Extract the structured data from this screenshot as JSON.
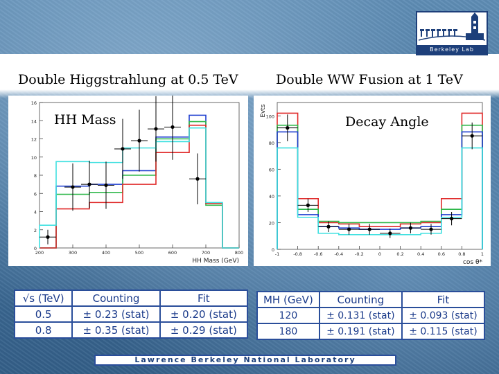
{
  "headings": {
    "left": "Double Higgstrahlung at 0.5 TeV",
    "right": "Double WW Fusion at 1 TeV"
  },
  "logo": {
    "text": "Berkeley Lab"
  },
  "footer": {
    "text": "Lawrence Berkeley National Laboratory"
  },
  "colors": {
    "blue": "#1f3fd0",
    "green": "#2fb84a",
    "red": "#e02a2a",
    "cyan": "#3fe0e0",
    "data": "#000000"
  },
  "chart_data": [
    {
      "type": "bar",
      "label": "HH Mass",
      "xlabel": "HH Mass (GeV)",
      "ylabel": "",
      "xlim": [
        200,
        800
      ],
      "ylim": [
        0,
        16
      ],
      "xticks": [
        200,
        300,
        400,
        500,
        600,
        700,
        800
      ],
      "yticks": [
        0,
        2,
        4,
        6,
        8,
        10,
        12,
        14,
        16
      ],
      "bin_edges": [
        200,
        250,
        300,
        350,
        400,
        450,
        500,
        550,
        600,
        650,
        700,
        750,
        800
      ],
      "series": [
        {
          "color": "blue",
          "values": [
            0,
            6.8,
            6.8,
            7.0,
            7.0,
            8.5,
            8.5,
            12.2,
            12.2,
            14.6,
            4.9,
            0
          ]
        },
        {
          "color": "green",
          "values": [
            0,
            5.9,
            5.9,
            6.1,
            6.1,
            8.0,
            8.0,
            12.0,
            12.0,
            13.9,
            4.7,
            0
          ]
        },
        {
          "color": "red",
          "values": [
            0,
            4.3,
            4.3,
            5.0,
            5.0,
            7.0,
            7.0,
            10.5,
            10.5,
            13.5,
            4.9,
            0
          ]
        },
        {
          "color": "cyan",
          "values": [
            2.5,
            9.5,
            9.5,
            9.4,
            9.4,
            11.0,
            11.0,
            11.7,
            11.7,
            13.2,
            5.0,
            0
          ]
        }
      ],
      "points": [
        {
          "x": 225,
          "y": 1.2,
          "err": 0.8,
          "xerr": 25
        },
        {
          "x": 300,
          "y": 6.7,
          "err": 2.6,
          "xerr": 25
        },
        {
          "x": 350,
          "y": 7.0,
          "err": 2.6,
          "xerr": 25
        },
        {
          "x": 400,
          "y": 6.9,
          "err": 2.6,
          "xerr": 25
        },
        {
          "x": 450,
          "y": 10.9,
          "err": 3.3,
          "xerr": 25
        },
        {
          "x": 500,
          "y": 11.8,
          "err": 3.4,
          "xerr": 25
        },
        {
          "x": 550,
          "y": 13.1,
          "err": 3.6,
          "xerr": 25
        },
        {
          "x": 600,
          "y": 13.3,
          "err": 3.6,
          "xerr": 25
        },
        {
          "x": 675,
          "y": 7.6,
          "err": 2.8,
          "xerr": 25
        }
      ],
      "x_tick_labels": [
        "200",
        "300",
        "400",
        "500",
        "600",
        "700",
        "800"
      ]
    },
    {
      "type": "bar",
      "label": "Decay Angle",
      "xlabel": "cos θ*",
      "ylabel": "Evts",
      "xlim": [
        -1,
        1
      ],
      "ylim": [
        0,
        110
      ],
      "xticks": [
        -1,
        -0.8,
        -0.6,
        -0.4,
        -0.2,
        0,
        0.2,
        0.4,
        0.6,
        0.8,
        1
      ],
      "yticks": [
        0,
        20,
        40,
        60,
        80,
        100
      ],
      "bin_edges": [
        -1,
        -0.8,
        -0.6,
        -0.4,
        -0.2,
        0,
        0.2,
        0.4,
        0.6,
        0.8,
        1
      ],
      "series": [
        {
          "color": "red",
          "values": [
            102,
            38,
            20,
            19,
            17,
            17,
            19,
            20,
            38,
            102
          ]
        },
        {
          "color": "green",
          "values": [
            93,
            30,
            21,
            20,
            20,
            20,
            20,
            21,
            30,
            93
          ]
        },
        {
          "color": "blue",
          "values": [
            88,
            26,
            17,
            16,
            15,
            15,
            16,
            17,
            26,
            88
          ]
        },
        {
          "color": "cyan",
          "values": [
            76,
            24,
            12,
            11,
            11,
            11,
            11,
            12,
            24,
            76
          ]
        }
      ],
      "points": [
        {
          "x": -0.9,
          "y": 91,
          "err": 10,
          "xerr": 0.1
        },
        {
          "x": -0.7,
          "y": 33,
          "err": 5,
          "xerr": 0.1
        },
        {
          "x": -0.5,
          "y": 17,
          "err": 4,
          "xerr": 0.1
        },
        {
          "x": -0.3,
          "y": 15,
          "err": 4,
          "xerr": 0.1
        },
        {
          "x": -0.1,
          "y": 15,
          "err": 4,
          "xerr": 0.1
        },
        {
          "x": 0.1,
          "y": 12,
          "err": 3.5,
          "xerr": 0.1
        },
        {
          "x": 0.3,
          "y": 16,
          "err": 4,
          "xerr": 0.1
        },
        {
          "x": 0.5,
          "y": 15,
          "err": 4,
          "xerr": 0.1
        },
        {
          "x": 0.7,
          "y": 23,
          "err": 5,
          "xerr": 0.1
        },
        {
          "x": 0.9,
          "y": 85,
          "err": 10,
          "xerr": 0.1
        }
      ],
      "x_tick_labels": [
        "-1",
        "-0.8",
        "-0.6",
        "-0.4",
        "-0.2",
        "0",
        "0.2",
        "0.4",
        "0.6",
        "0.8",
        "1"
      ]
    },
    {
      "type": "table",
      "headers": [
        "√s (TeV)",
        "Counting",
        "Fit"
      ],
      "rows": [
        [
          "0.5",
          "± 0.23 (stat)",
          "± 0.20 (stat)"
        ],
        [
          "0.8",
          "± 0.35 (stat)",
          "± 0.29 (stat)"
        ]
      ]
    },
    {
      "type": "table",
      "headers": [
        "MH (GeV)",
        "Counting",
        "Fit"
      ],
      "rows": [
        [
          "120",
          "± 0.131 (stat)",
          "± 0.093 (stat)"
        ],
        [
          "180",
          "± 0.191 (stat)",
          "± 0.115 (stat)"
        ]
      ]
    }
  ]
}
